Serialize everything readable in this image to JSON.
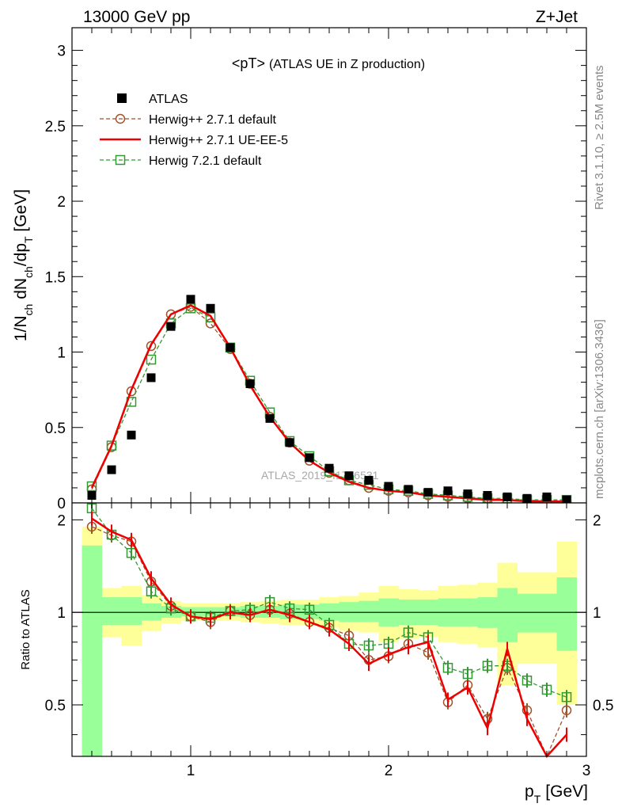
{
  "header": {
    "energy_label": "13000 GeV pp",
    "process_label": "Z+Jet"
  },
  "side_labels": {
    "generator": "Rivet 3.1.10, ≥ 2.5M events",
    "source": "mcplots.cern.ch [arXiv:1306.3436]"
  },
  "watermark": "ATLAS_2019_I1736531",
  "chart_data": [
    {
      "type": "scatter",
      "panel": "main",
      "title": "<pT>",
      "title_suffix": "(ATLAS UE in Z production)",
      "xlabel_main": "p",
      "xlabel_sub": "T",
      "xlabel_unit": "[GeV]",
      "ylabel": "1/N_ch dN_ch/dp_T [GeV]",
      "xlim": [
        0.4,
        3.0
      ],
      "ylim": [
        0,
        3.15
      ],
      "xticks": [
        1,
        2,
        3
      ],
      "yticks": [
        0,
        0.5,
        1,
        1.5,
        2,
        2.5,
        3
      ],
      "ytick_labels": [
        "0",
        "0.5",
        "1",
        "1.5",
        "2",
        "2.5",
        "3"
      ],
      "legend_position": "top-left",
      "x": [
        0.5,
        0.6,
        0.7,
        0.8,
        0.9,
        1.0,
        1.1,
        1.2,
        1.3,
        1.4,
        1.5,
        1.6,
        1.7,
        1.8,
        1.9,
        2.0,
        2.1,
        2.2,
        2.3,
        2.4,
        2.5,
        2.6,
        2.7,
        2.8,
        2.9
      ],
      "series": [
        {
          "name": "ATLAS",
          "style": "marker",
          "color": "#000000",
          "values": [
            0.05,
            0.22,
            0.45,
            0.83,
            1.17,
            1.35,
            1.29,
            1.03,
            0.79,
            0.56,
            0.4,
            0.3,
            0.23,
            0.18,
            0.15,
            0.11,
            0.09,
            0.07,
            0.08,
            0.06,
            0.05,
            0.04,
            0.03,
            0.04,
            0.02
          ]
        },
        {
          "name": "Herwig++ 2.7.1 default",
          "style": "dashed-circle",
          "color": "#a0522d",
          "values": [
            0.09,
            0.37,
            0.74,
            1.04,
            1.25,
            1.3,
            1.19,
            1.02,
            0.79,
            0.57,
            0.4,
            0.28,
            0.2,
            0.15,
            0.1,
            0.08,
            0.07,
            0.05,
            0.04,
            0.03,
            0.03,
            0.02,
            0.02,
            0.01,
            0.01
          ]
        },
        {
          "name": "Herwig++ 2.7.1 UE-EE-5",
          "style": "solid-line",
          "color": "#ee0000",
          "values": [
            0.1,
            0.38,
            0.75,
            1.05,
            1.25,
            1.31,
            1.24,
            1.03,
            0.78,
            0.57,
            0.4,
            0.28,
            0.2,
            0.14,
            0.1,
            0.08,
            0.07,
            0.05,
            0.04,
            0.03,
            0.02,
            0.02,
            0.01,
            0.01,
            0.01
          ]
        },
        {
          "name": "Herwig 7.2.1 default",
          "style": "dashed-square",
          "color": "#339933",
          "values": [
            0.11,
            0.38,
            0.67,
            0.95,
            1.19,
            1.29,
            1.23,
            1.03,
            0.81,
            0.6,
            0.41,
            0.31,
            0.21,
            0.15,
            0.12,
            0.09,
            0.08,
            0.06,
            0.05,
            0.04,
            0.03,
            0.03,
            0.02,
            0.02,
            0.02
          ]
        }
      ]
    },
    {
      "type": "line",
      "panel": "ratio",
      "ylabel": "Ratio to ATLAS",
      "xlim": [
        0.4,
        3.0
      ],
      "ylim": [
        0.34,
        2.27
      ],
      "xticks": [
        1,
        2,
        3
      ],
      "xtick_labels": [
        "1",
        "2",
        "3"
      ],
      "yticks": [
        0.5,
        1,
        2
      ],
      "ytick_labels": [
        "0.5",
        "1",
        "2"
      ],
      "reference_line": 1,
      "x": [
        0.5,
        0.6,
        0.7,
        0.8,
        0.9,
        1.0,
        1.1,
        1.2,
        1.3,
        1.4,
        1.5,
        1.6,
        1.7,
        1.8,
        1.9,
        2.0,
        2.1,
        2.2,
        2.3,
        2.4,
        2.5,
        2.6,
        2.7,
        2.8,
        2.9
      ],
      "bands": {
        "inner": [
          [
            0.34,
            1.65
          ],
          [
            0.91,
            1.12
          ],
          [
            0.91,
            1.12
          ],
          [
            0.94,
            1.07
          ],
          [
            0.96,
            1.05
          ],
          [
            0.97,
            1.04
          ],
          [
            0.97,
            1.04
          ],
          [
            0.97,
            1.04
          ],
          [
            0.96,
            1.05
          ],
          [
            0.96,
            1.05
          ],
          [
            0.95,
            1.06
          ],
          [
            0.95,
            1.06
          ],
          [
            0.94,
            1.07
          ],
          [
            0.93,
            1.08
          ],
          [
            0.93,
            1.09
          ],
          [
            0.9,
            1.11
          ],
          [
            0.91,
            1.1
          ],
          [
            0.91,
            1.1
          ],
          [
            0.9,
            1.11
          ],
          [
            0.9,
            1.11
          ],
          [
            0.89,
            1.12
          ],
          [
            0.8,
            1.2
          ],
          [
            0.86,
            1.15
          ],
          [
            0.86,
            1.15
          ],
          [
            0.75,
            1.3
          ]
        ],
        "outer": [
          [
            0.3,
            1.9
          ],
          [
            0.83,
            1.2
          ],
          [
            0.78,
            1.22
          ],
          [
            0.87,
            1.14
          ],
          [
            0.92,
            1.09
          ],
          [
            0.94,
            1.07
          ],
          [
            0.94,
            1.07
          ],
          [
            0.94,
            1.07
          ],
          [
            0.93,
            1.08
          ],
          [
            0.92,
            1.09
          ],
          [
            0.91,
            1.1
          ],
          [
            0.91,
            1.1
          ],
          [
            0.89,
            1.12
          ],
          [
            0.87,
            1.13
          ],
          [
            0.86,
            1.16
          ],
          [
            0.8,
            1.22
          ],
          [
            0.82,
            1.19
          ],
          [
            0.83,
            1.18
          ],
          [
            0.8,
            1.22
          ],
          [
            0.79,
            1.23
          ],
          [
            0.77,
            1.25
          ],
          [
            0.58,
            1.45
          ],
          [
            0.68,
            1.35
          ],
          [
            0.68,
            1.35
          ],
          [
            0.5,
            1.7
          ]
        ]
      },
      "series": [
        {
          "name": "Herwig++ 2.7.1 default",
          "style": "dashed-circle",
          "color": "#a0522d",
          "values": [
            1.9,
            1.78,
            1.7,
            1.26,
            1.05,
            0.97,
            0.93,
            1.01,
            0.98,
            1.02,
            0.99,
            0.93,
            0.89,
            0.84,
            0.7,
            0.72,
            0.79,
            0.74,
            0.51,
            0.58,
            0.45,
            0.66,
            0.48,
            0.28,
            0.48
          ]
        },
        {
          "name": "Herwig++ 2.7.1 UE-EE-5",
          "style": "solid-line",
          "color": "#ee0000",
          "values": [
            2.02,
            1.83,
            1.72,
            1.29,
            1.06,
            0.97,
            0.95,
            1.0,
            0.98,
            1.02,
            0.98,
            0.93,
            0.88,
            0.79,
            0.68,
            0.73,
            0.77,
            0.8,
            0.52,
            0.57,
            0.42,
            0.76,
            0.45,
            0.2,
            0.4
          ]
        },
        {
          "name": "Herwig 7.2.1 default",
          "style": "dashed-square",
          "color": "#339933",
          "values": [
            2.18,
            1.79,
            1.56,
            1.17,
            1.03,
            0.97,
            0.96,
            1.01,
            1.02,
            1.08,
            1.03,
            1.02,
            0.91,
            0.79,
            0.78,
            0.79,
            0.86,
            0.83,
            0.66,
            0.63,
            0.67,
            0.67,
            0.6,
            0.56,
            0.53
          ]
        }
      ]
    }
  ]
}
